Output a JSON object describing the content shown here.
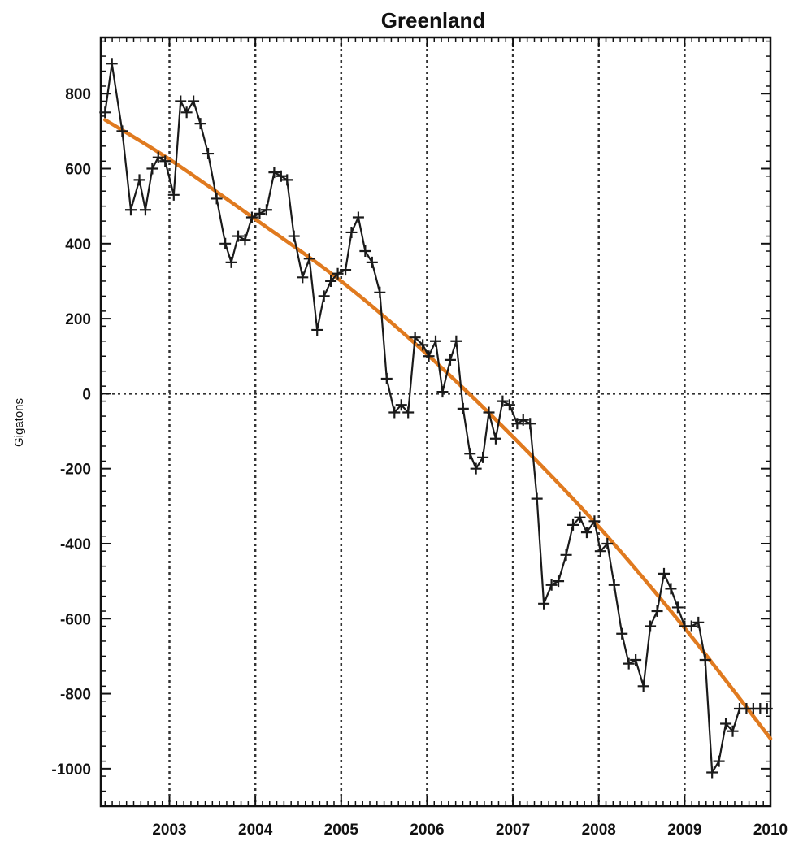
{
  "chart_data": {
    "type": "line",
    "title": "Greenland",
    "xlabel": "",
    "ylabel": "Gigatons",
    "xlim": [
      2002.2,
      2010.0
    ],
    "ylim": [
      -1100,
      950
    ],
    "x_ticks": [
      2003,
      2004,
      2005,
      2006,
      2007,
      2008,
      2009,
      2010
    ],
    "x_tick_labels": [
      "2003",
      "2004",
      "2005",
      "2006",
      "2007",
      "2008",
      "2009",
      "2010"
    ],
    "y_ticks": [
      800,
      600,
      400,
      200,
      0,
      -200,
      -400,
      -600,
      -800,
      -1000
    ],
    "y_tick_labels": [
      "800",
      "600",
      "400",
      "200",
      "0",
      "-200",
      "-400",
      "-600",
      "-800",
      "-1000"
    ],
    "grid": true,
    "colors": {
      "series": "#1a1a1a",
      "trend": "#e07a1f",
      "grid": "#333333"
    },
    "series": [
      {
        "marker": "plus",
        "x": [
          2002.25,
          2002.33,
          2002.45,
          2002.55,
          2002.65,
          2002.72,
          2002.8,
          2002.87,
          2002.95,
          2003.05,
          2003.13,
          2003.2,
          2003.28,
          2003.36,
          2003.45,
          2003.55,
          2003.65,
          2003.72,
          2003.8,
          2003.88,
          2003.96,
          2004.05,
          2004.13,
          2004.22,
          2004.3,
          2004.37,
          2004.45,
          2004.55,
          2004.63,
          2004.72,
          2004.8,
          2004.88,
          2004.96,
          2005.05,
          2005.12,
          2005.2,
          2005.28,
          2005.36,
          2005.45,
          2005.53,
          2005.62,
          2005.7,
          2005.78,
          2005.86,
          2005.95,
          2006.02,
          2006.1,
          2006.18,
          2006.27,
          2006.34,
          2006.42,
          2006.5,
          2006.57,
          2006.65,
          2006.72,
          2006.8,
          2006.88,
          2006.96,
          2007.05,
          2007.12,
          2007.2,
          2007.28,
          2007.36,
          2007.45,
          2007.53,
          2007.62,
          2007.7,
          2007.78,
          2007.86,
          2007.95,
          2008.02,
          2008.1,
          2008.18,
          2008.27,
          2008.35,
          2008.43,
          2008.52,
          2008.6,
          2008.68,
          2008.76,
          2008.84,
          2008.92,
          2009.0,
          2009.08,
          2009.16,
          2009.24,
          2009.32,
          2009.4,
          2009.48,
          2009.56,
          2009.64,
          2009.72,
          2009.8,
          2009.88,
          2009.96
        ],
        "y": [
          750,
          880,
          700,
          490,
          570,
          490,
          600,
          630,
          620,
          530,
          780,
          750,
          780,
          720,
          640,
          520,
          400,
          350,
          420,
          410,
          470,
          480,
          490,
          590,
          580,
          570,
          420,
          310,
          360,
          170,
          260,
          300,
          320,
          330,
          430,
          470,
          380,
          350,
          270,
          40,
          -50,
          -30,
          -50,
          150,
          130,
          100,
          140,
          5,
          90,
          140,
          -40,
          -160,
          -200,
          -170,
          -50,
          -120,
          -20,
          -30,
          -80,
          -70,
          -80,
          -280,
          -560,
          -510,
          -500,
          -430,
          -350,
          -330,
          -370,
          -340,
          -420,
          -400,
          -510,
          -640,
          -720,
          -710,
          -780,
          -620,
          -580,
          -480,
          -520,
          -570,
          -620,
          -620,
          -610,
          -710,
          -1010,
          -980,
          -880,
          -900,
          -840,
          -840,
          -840,
          -840,
          -840
        ]
      },
      {
        "type": "trend",
        "x": [
          2002.25,
          2003.0,
          2004.0,
          2005.0,
          2006.0,
          2007.0,
          2008.0,
          2009.0,
          2010.0
        ],
        "y": [
          730,
          625,
          465,
          300,
          105,
          -115,
          -355,
          -625,
          -920
        ]
      }
    ]
  }
}
